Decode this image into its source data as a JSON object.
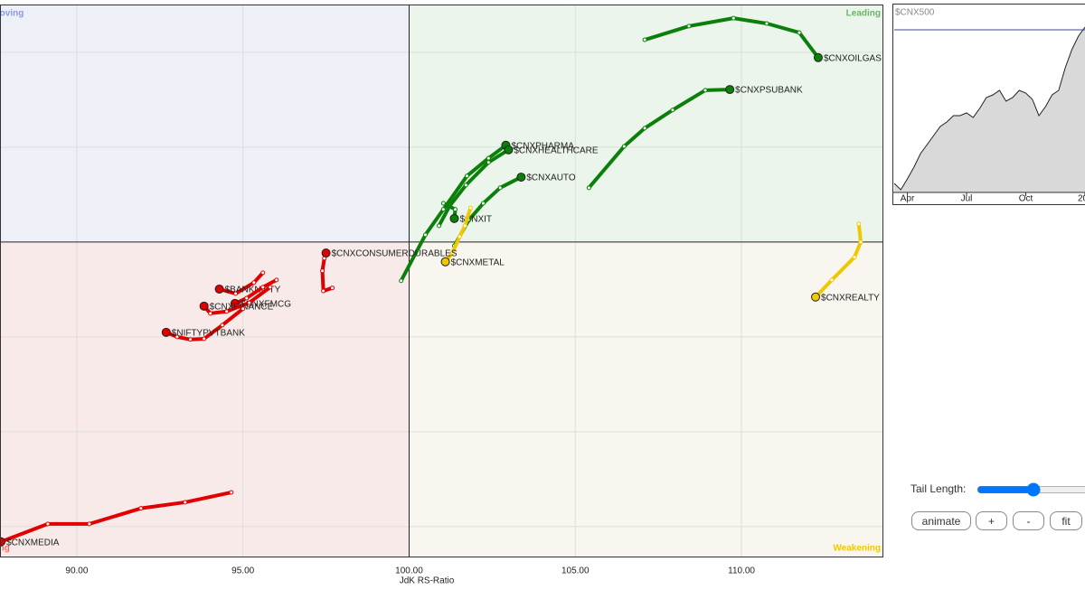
{
  "chart_data": [
    {
      "type": "rrg",
      "x_label": "JdK RS-Ratio",
      "xlim": [
        87.69,
        114.27
      ],
      "ylim": [
        91.71,
        106.26
      ],
      "xticks": [
        {
          "value": 90,
          "label": "90.00"
        },
        {
          "value": 95,
          "label": "95.00"
        },
        {
          "value": 100,
          "label": "100.00"
        },
        {
          "value": 105,
          "label": "105.00"
        },
        {
          "value": 110,
          "label": "110.00"
        }
      ],
      "ygrid": [
        92.5,
        95,
        97.5,
        102.5,
        105
      ],
      "xcenter": 100,
      "ycenter": 100,
      "grid": true,
      "quadrants": {
        "improving": "Improving",
        "leading": "Leading",
        "lagging": "Lagging",
        "weakening": "Weakening"
      },
      "quadrant_colors": {
        "improving": "#8a9ad8",
        "leading": "#6cb36c",
        "lagging": "#f07070",
        "weakening": "#f0c800"
      },
      "series": [
        {
          "name": "$CNXOILGAS",
          "color": "#0a800a",
          "x": [
            107.09,
            108.42,
            109.76,
            110.76,
            111.74,
            112.31
          ],
          "y": [
            105.33,
            105.69,
            105.9,
            105.76,
            105.52,
            104.86
          ]
        },
        {
          "name": "$CNXPSUBANK",
          "color": "#0a800a",
          "x": [
            105.41,
            106.47,
            107.09,
            107.93,
            108.91,
            109.65
          ],
          "y": [
            101.43,
            102.52,
            103.0,
            103.48,
            104.0,
            104.02
          ]
        },
        {
          "name": "$CNXPHARMA",
          "color": "#0a800a",
          "x": [
            99.76,
            100.49,
            101.03,
            101.74,
            102.39,
            102.91
          ],
          "y": [
            98.98,
            100.19,
            100.86,
            101.74,
            102.21,
            102.55
          ]
        },
        {
          "name": "$CNXHEALTHCARE",
          "color": "#0a800a",
          "x": [
            100.9,
            101.22,
            101.71,
            102.39,
            102.99
          ],
          "y": [
            100.43,
            100.95,
            101.5,
            102.1,
            102.43
          ]
        },
        {
          "name": "$CNXAUTO",
          "color": "#0a800a",
          "x": [
            101.36,
            101.79,
            102.23,
            102.74,
            103.37
          ],
          "y": [
            99.9,
            100.57,
            101.02,
            101.43,
            101.71
          ]
        },
        {
          "name": "$CNXIT",
          "color": "#0a800a",
          "x": [
            101.03,
            101.39,
            101.36
          ],
          "y": [
            101.02,
            100.86,
            100.62
          ]
        },
        {
          "name": "$CNXMETAL",
          "color": "#f0c800",
          "x": [
            101.85,
            101.68,
            101.52,
            101.3,
            101.09
          ],
          "y": [
            100.9,
            100.43,
            100.14,
            99.71,
            99.48
          ]
        },
        {
          "name": "$CNXREALTY",
          "color": "#f0c800",
          "x": [
            113.53,
            113.59,
            113.4,
            112.72,
            112.23
          ],
          "y": [
            100.48,
            100.0,
            99.6,
            99.0,
            98.55
          ]
        },
        {
          "name": "$CNXCONSUMERDURABLES",
          "color": "#e00000",
          "x": [
            97.69,
            97.42,
            97.39,
            97.45,
            97.5
          ],
          "y": [
            98.79,
            98.71,
            99.24,
            99.57,
            99.71
          ]
        },
        {
          "name": "$BANKNIFTY",
          "color": "#e00000",
          "x": [
            95.6,
            95.33,
            94.78,
            94.29
          ],
          "y": [
            99.19,
            98.93,
            98.64,
            98.76
          ]
        },
        {
          "name": "$CNXFMCG",
          "color": "#e00000",
          "x": [
            96.01,
            95.6,
            95.11,
            94.76
          ],
          "y": [
            99.0,
            98.81,
            98.52,
            98.38
          ]
        },
        {
          "name": "$CNXFINANCE",
          "color": "#e00000",
          "x": [
            95.82,
            95.19,
            94.51,
            94.02,
            93.83
          ],
          "y": [
            98.81,
            98.4,
            98.17,
            98.12,
            98.31
          ]
        },
        {
          "name": "$NIFTYPVTBANK",
          "color": "#e00000",
          "x": [
            95.0,
            94.38,
            93.83,
            93.42,
            93.02,
            92.69
          ],
          "y": [
            98.24,
            97.81,
            97.45,
            97.43,
            97.5,
            97.62
          ]
        },
        {
          "name": "$CNXMEDIA",
          "color": "#e00000",
          "x": [
            94.65,
            93.26,
            91.93,
            90.38,
            89.13,
            87.72
          ],
          "y": [
            93.4,
            93.14,
            92.98,
            92.57,
            92.57,
            92.1
          ]
        }
      ]
    },
    {
      "type": "area",
      "title": "$CNX500",
      "color": "#d9d9d9",
      "line_color": "#222222",
      "reference_line": 180,
      "reference_color": "#4040a0",
      "ylim": [
        0,
        208
      ],
      "categories": [
        null,
        null,
        "Apr",
        null,
        null,
        null,
        null,
        null,
        null,
        null,
        null,
        "Jul",
        null,
        null,
        null,
        null,
        null,
        null,
        null,
        null,
        "Oct",
        null,
        null,
        null,
        null,
        null,
        null,
        null,
        null,
        "20"
      ],
      "values": [
        10,
        3,
        15,
        28,
        43,
        53,
        63,
        73,
        78,
        85,
        85,
        88,
        83,
        93,
        105,
        108,
        113,
        101,
        105,
        113,
        110,
        103,
        85,
        95,
        108,
        113,
        138,
        158,
        173,
        183
      ]
    }
  ],
  "controls": {
    "tail_label": "Tail Length:",
    "buttons": [
      "animate",
      "+",
      "-",
      "fit"
    ]
  }
}
